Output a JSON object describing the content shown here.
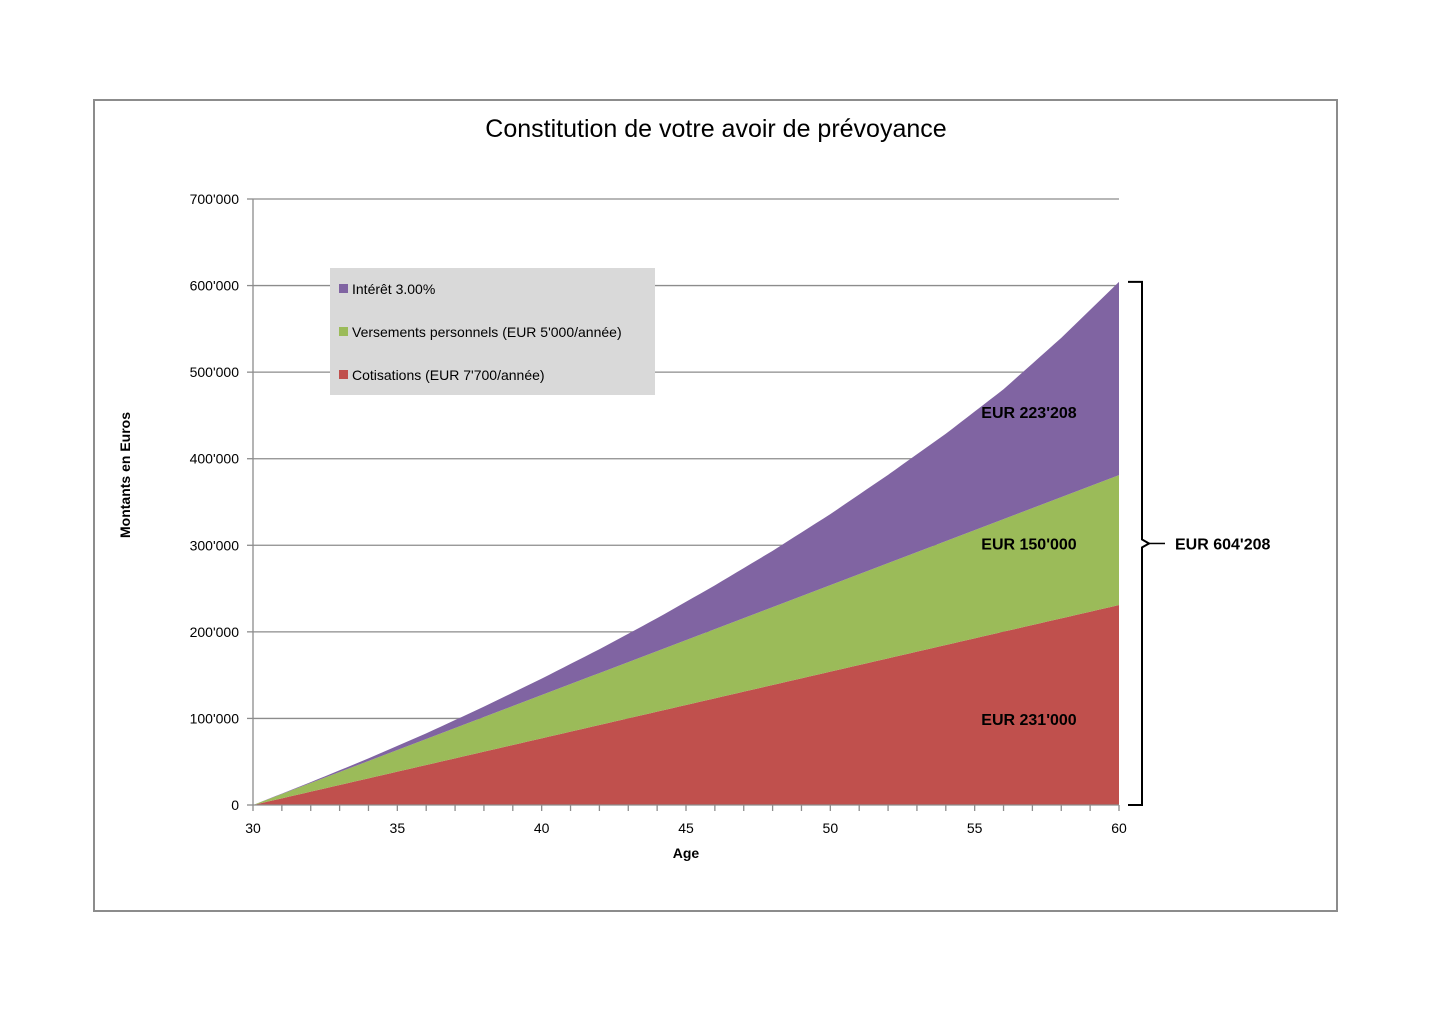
{
  "chart_data": {
    "type": "area",
    "stacked": true,
    "title": "Constitution de votre avoir de prévoyance",
    "xlabel": "Age",
    "ylabel": "Montants en Euros",
    "xlim": [
      30,
      60
    ],
    "ylim": [
      0,
      700000
    ],
    "x_ticks": [
      30,
      35,
      40,
      45,
      50,
      55,
      60
    ],
    "x_tick_labels": [
      "30",
      "35",
      "40",
      "45",
      "50",
      "55",
      "60"
    ],
    "y_ticks": [
      0,
      100000,
      200000,
      300000,
      400000,
      500000,
      600000,
      700000
    ],
    "y_tick_labels": [
      "0",
      "100'000",
      "200'000",
      "300'000",
      "400'000",
      "500'000",
      "600'000",
      "700'000"
    ],
    "grid": true,
    "legend_position": "top-left",
    "legend": [
      {
        "label": "Intérêt 3.00%",
        "color": "#8064A2"
      },
      {
        "label": "Versements personnels (EUR 5'000/année)",
        "color": "#9BBB59"
      },
      {
        "label": "Cotisations (EUR 7'700/année)",
        "color": "#C0504D"
      }
    ],
    "series": [
      {
        "name": "Cotisations (EUR 7'700/année)",
        "color": "#C0504D",
        "x": [
          30,
          60
        ],
        "values": [
          0,
          231000
        ]
      },
      {
        "name": "Versements personnels (EUR 5'000/année)",
        "color": "#9BBB59",
        "x": [
          30,
          60
        ],
        "values": [
          0,
          150000
        ]
      },
      {
        "name": "Intérêt 3.00%",
        "color": "#8064A2",
        "x": [
          30,
          32,
          34,
          36,
          38,
          40,
          42,
          44,
          46,
          48,
          50,
          52,
          54,
          56,
          58,
          60
        ],
        "values": [
          0,
          1000,
          3000,
          6500,
          12000,
          19000,
          27500,
          38000,
          50500,
          65000,
          82000,
          102000,
          124000,
          150000,
          184000,
          223208
        ]
      }
    ],
    "area_labels": {
      "interest": "EUR 223'208",
      "personal": "EUR 150'000",
      "contributions": "EUR 231'000"
    },
    "total_label": "EUR 604'208"
  }
}
